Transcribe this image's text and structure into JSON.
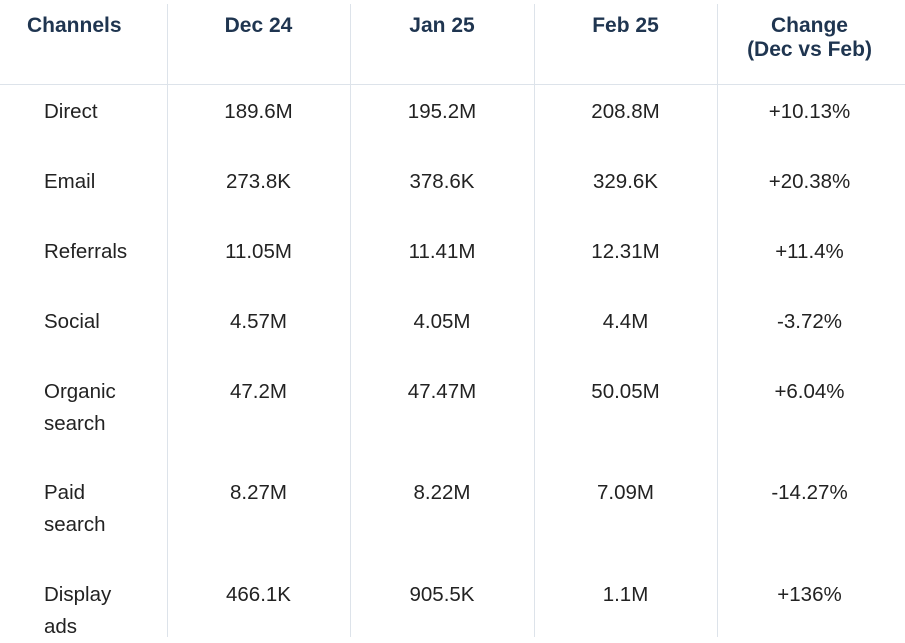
{
  "table": {
    "headers": {
      "channel": "Channels",
      "dec": "Dec 24",
      "jan": "Jan 25",
      "feb": "Feb 25",
      "change_line1": "Change",
      "change_line2": "(Dec vs Feb)"
    },
    "rows": [
      {
        "label_line1": "Direct",
        "label_line2": "",
        "dec": "189.6M",
        "jan": "195.2M",
        "feb": "208.8M",
        "change": "+10.13%"
      },
      {
        "label_line1": "Email",
        "label_line2": "",
        "dec": "273.8K",
        "jan": "378.6K",
        "feb": "329.6K",
        "change": "+20.38%"
      },
      {
        "label_line1": "Referrals",
        "label_line2": "",
        "dec": "11.05M",
        "jan": "11.41M",
        "feb": "12.31M",
        "change": "+11.4%"
      },
      {
        "label_line1": "Social",
        "label_line2": "",
        "dec": "4.57M",
        "jan": "4.05M",
        "feb": "4.4M",
        "change": "-3.72%"
      },
      {
        "label_line1": "Organic",
        "label_line2": "search",
        "dec": "47.2M",
        "jan": "47.47M",
        "feb": "50.05M",
        "change": "+6.04%"
      },
      {
        "label_line1": "Paid",
        "label_line2": "search",
        "dec": "8.27M",
        "jan": "8.22M",
        "feb": "7.09M",
        "change": "-14.27%"
      },
      {
        "label_line1": "Display",
        "label_line2": "ads",
        "dec": "466.1K",
        "jan": "905.5K",
        "feb": "1.1M",
        "change": "+136%"
      }
    ]
  }
}
